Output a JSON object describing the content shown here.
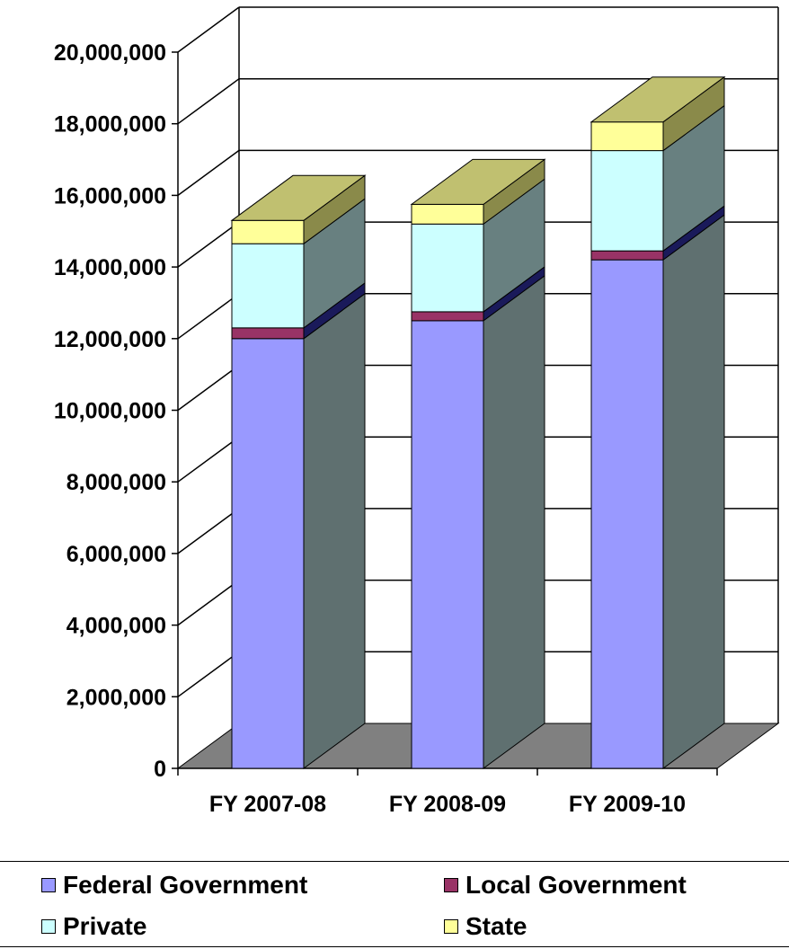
{
  "chart_data": {
    "type": "bar",
    "stacked": true,
    "three_d": true,
    "categories": [
      "FY 2007-08",
      "FY 2008-09",
      "FY 2009-10"
    ],
    "series": [
      {
        "name": "Federal Government",
        "values": [
          12000000,
          12500000,
          14200000
        ],
        "color": "#9999ff",
        "side_color": "#5f7070",
        "top_color": "#7a7ad0"
      },
      {
        "name": "Local Government",
        "values": [
          300000,
          250000,
          250000
        ],
        "color": "#993366",
        "side_color": "#1a1a5a",
        "top_color": "#6a2246"
      },
      {
        "name": "Private",
        "values": [
          2350000,
          2450000,
          2800000
        ],
        "color": "#ccffff",
        "side_color": "#688080",
        "top_color": "#a0d0d0"
      },
      {
        "name": "State",
        "values": [
          650000,
          550000,
          800000
        ],
        "color": "#ffff99",
        "side_color": "#8a8a4a",
        "top_color": "#c0c070"
      }
    ],
    "y_ticks": [
      "0",
      "2,000,000",
      "4,000,000",
      "6,000,000",
      "8,000,000",
      "10,000,000",
      "12,000,000",
      "14,000,000",
      "16,000,000",
      "18,000,000",
      "20,000,000"
    ],
    "ylim": [
      0,
      20000000
    ],
    "grid": true,
    "legend_position": "bottom",
    "floor_color": "#808080"
  },
  "legend": {
    "items": [
      {
        "label": "Federal Government",
        "color": "#9999ff"
      },
      {
        "label": "Local Government",
        "color": "#993366"
      },
      {
        "label": "Private",
        "color": "#ccffff"
      },
      {
        "label": "State",
        "color": "#ffff99"
      }
    ]
  }
}
